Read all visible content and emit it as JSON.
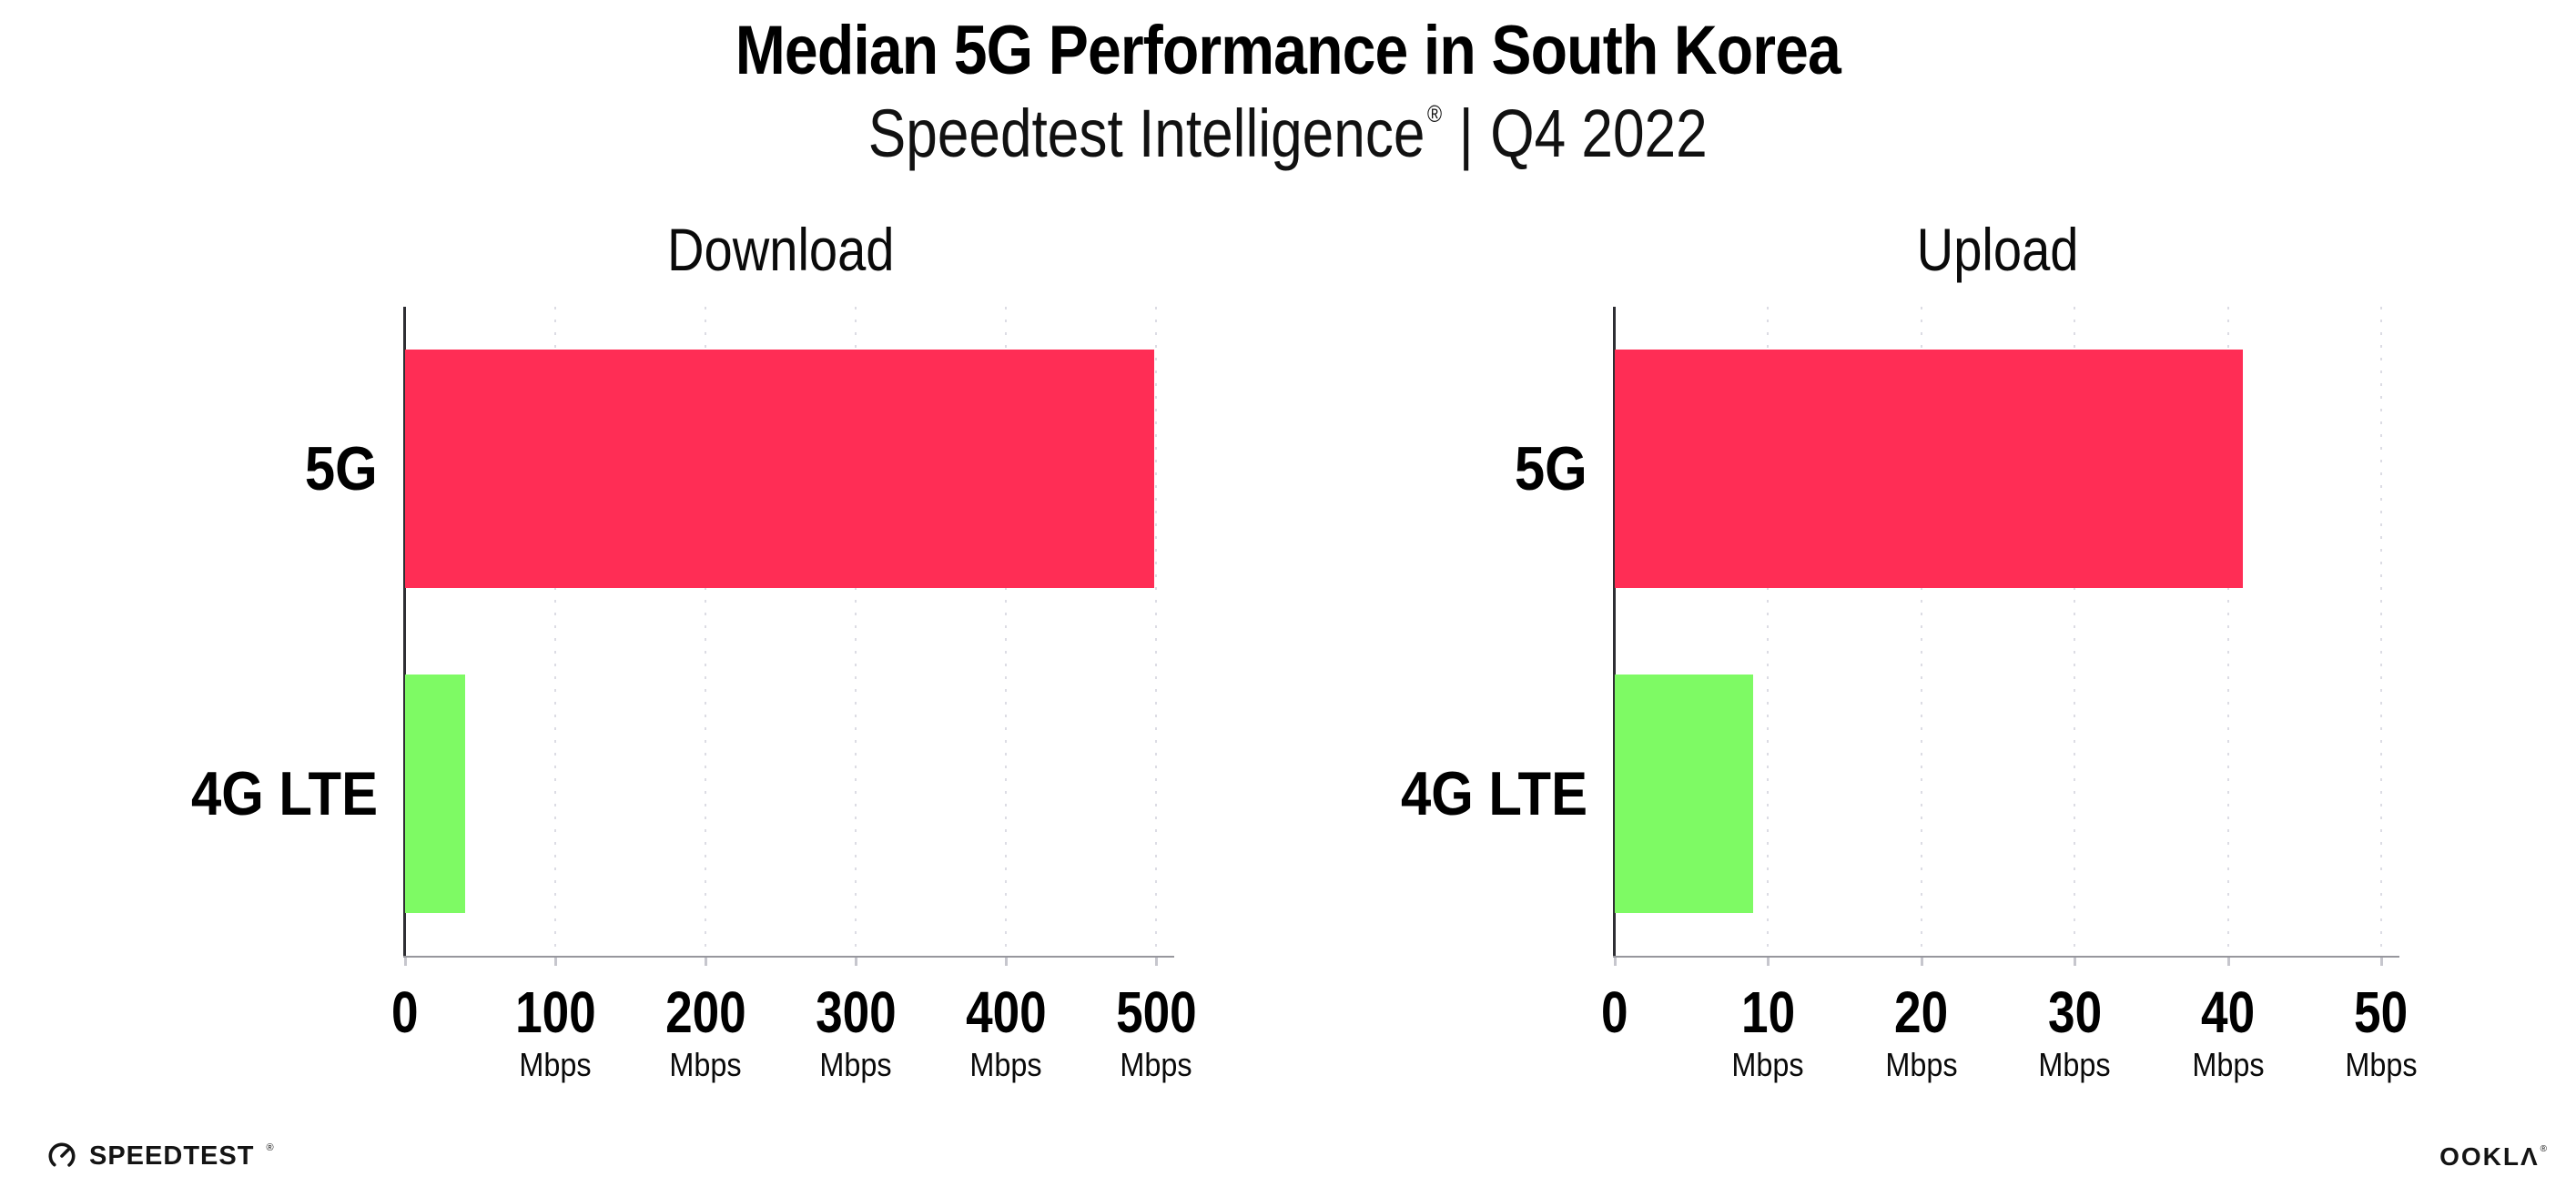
{
  "header": {
    "title": "Median 5G Performance in South Korea",
    "subtitle_brand": "Speedtest Intelligence",
    "subtitle_reg": "®",
    "subtitle_divider": "|",
    "subtitle_period": "Q4 2022"
  },
  "chart_data": [
    {
      "type": "bar",
      "orientation": "horizontal",
      "title": "Download",
      "categories": [
        "5G",
        "4G LTE"
      ],
      "values": [
        499,
        40
      ],
      "unit": "Mbps",
      "xlabel": "",
      "ylabel": "",
      "xlim": [
        0,
        500
      ],
      "xticks": [
        0,
        100,
        200,
        300,
        400,
        500
      ],
      "bar_colors": [
        "#FF2D55",
        "#7EFA64"
      ],
      "grid": "vertical-dashed",
      "legend": "none"
    },
    {
      "type": "bar",
      "orientation": "horizontal",
      "title": "Upload",
      "categories": [
        "5G",
        "4G LTE"
      ],
      "values": [
        41,
        9
      ],
      "unit": "Mbps",
      "xlabel": "",
      "ylabel": "",
      "xlim": [
        0,
        50
      ],
      "xticks": [
        0,
        10,
        20,
        30,
        40,
        50
      ],
      "bar_colors": [
        "#FF2D55",
        "#7EFA64"
      ],
      "grid": "vertical-dashed",
      "legend": "none"
    }
  ],
  "footer": {
    "speedtest_wordmark": "SPEEDTEST",
    "speedtest_reg": "®",
    "ookla_wordmark": "OOKLΛ",
    "ookla_reg": "®"
  },
  "colors": {
    "bar_5g": "#FF2D55",
    "bar_4g_lte": "#7EFA64",
    "gridline": "#DCDCE4",
    "y_axis": "#2E2E33",
    "x_axis": "#97979D",
    "text": "#000000"
  }
}
